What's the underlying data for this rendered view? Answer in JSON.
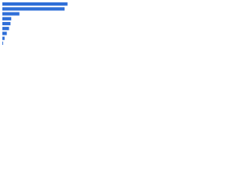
{
  "chart_data": {
    "type": "bar",
    "orientation": "horizontal",
    "categories": [
      null,
      null,
      null,
      null,
      null,
      null,
      null,
      null,
      null
    ],
    "values": [
      88,
      84,
      23,
      12,
      11,
      9,
      6,
      3,
      1
    ],
    "color": "#2f6fd8",
    "xlim": [
      0,
      100
    ]
  }
}
